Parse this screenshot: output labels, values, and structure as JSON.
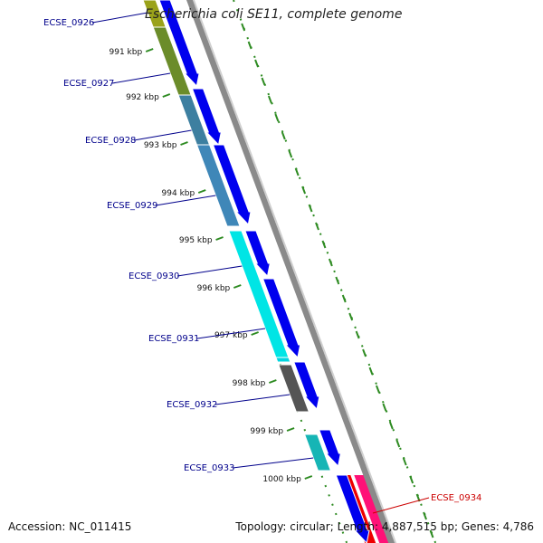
{
  "title": "Escherichia coli SE11, complete genome",
  "footer": {
    "accession_label": "Accession:",
    "accession": "NC_011415",
    "topology_label": "Topology:",
    "topology": "circular",
    "length_label": "Length:",
    "length": "4,887,515 bp",
    "genes_label": "Genes:",
    "genes": "4,786"
  },
  "colors": {
    "backbone": "#8a8a8a",
    "tick": "#2e8b22",
    "gene_label": "#00008b",
    "highlight_label": "#cc0000",
    "cds_arrow": "#0000ee",
    "highlight_arrow": "#ee0000",
    "highlight_outer": "#ff3399"
  },
  "chart_data": {
    "type": "genome-map",
    "ticks": [
      "991 kbp",
      "992 kbp",
      "993 kbp",
      "994 kbp",
      "995 kbp",
      "996 kbp",
      "997 kbp",
      "998 kbp",
      "999 kbp",
      "1000 kbp"
    ],
    "genes": [
      {
        "name": "ECSE_0926",
        "color": "#9aa21a"
      },
      {
        "name": "ECSE_0927",
        "color": "#6b8c2a"
      },
      {
        "name": "ECSE_0928",
        "color": "#3d7fa0"
      },
      {
        "name": "ECSE_0929",
        "color": "#3f87b8"
      },
      {
        "name": "ECSE_0930",
        "color": "#00e5e5"
      },
      {
        "name": "ECSE_0931",
        "color": "#00d6e0"
      },
      {
        "name": "ECSE_0932",
        "color": "#555555"
      },
      {
        "name": "ECSE_0933",
        "color": "#16b5b5"
      },
      {
        "name": "ECSE_0934",
        "color": "#ff1177",
        "highlight": true
      }
    ]
  }
}
